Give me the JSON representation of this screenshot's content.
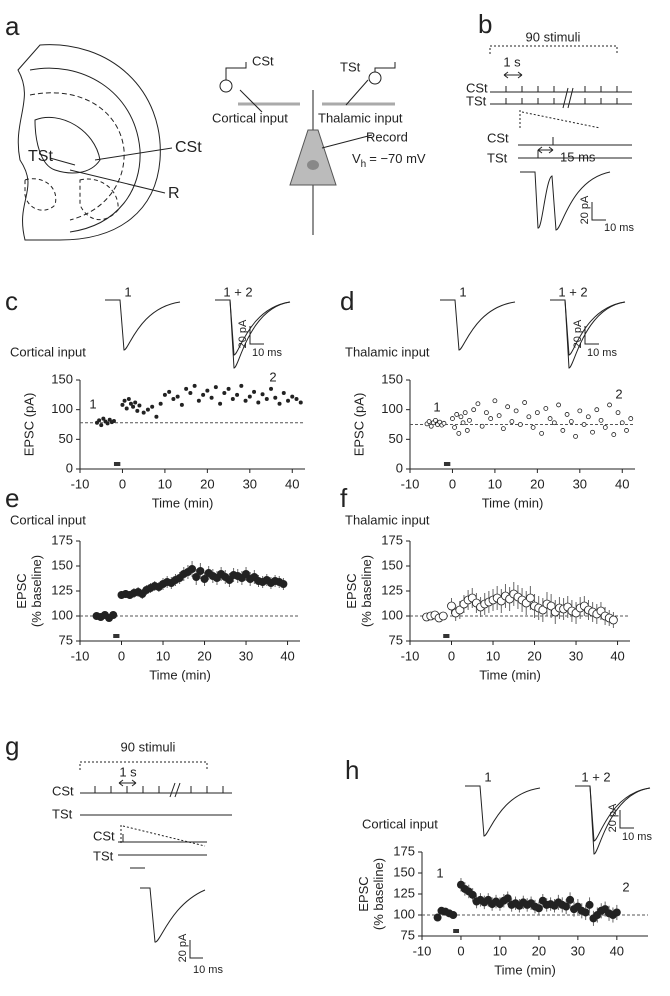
{
  "panel_a": {
    "label": "a",
    "brain_labels": [
      "TSt",
      "CSt",
      "R"
    ],
    "stimulus_labels": [
      "CSt",
      "TSt"
    ],
    "input_labels": [
      "Cortical input",
      "Thalamic input"
    ],
    "record_label": "Record",
    "holding_potential": {
      "symbol": "V",
      "subscript": "h",
      "text": "= −70 mV"
    }
  },
  "panel_b": {
    "label": "b",
    "train_label": "90 stimuli",
    "interval_label": "1 s",
    "rows": [
      "CSt",
      "TSt"
    ],
    "pair_rows": [
      "CSt",
      "TSt"
    ],
    "pair_interval_label": "15 ms",
    "scale_y": "20 pA",
    "scale_x": "10 ms"
  },
  "panel_g": {
    "label": "g",
    "train_label": "90 stimuli",
    "interval_label": "1 s",
    "rows": [
      "CSt",
      "TSt"
    ],
    "pair_rows": [
      "CSt",
      "TSt"
    ],
    "scale_y": "20 pA",
    "scale_x": "10 ms"
  },
  "chart_data": [
    {
      "type": "scatter",
      "panel": "c",
      "title": "Cortical input",
      "trace_labels": [
        "1",
        "1 + 2"
      ],
      "scale_y": "20 pA",
      "scale_x": "10 ms",
      "annotations": [
        "1",
        "2"
      ],
      "xlabel": "Time (min)",
      "ylabel": [
        "EPSC (pA)"
      ],
      "marker": "filled",
      "color": "#222222",
      "xlim": [
        -10,
        43
      ],
      "ylim": [
        0,
        150
      ],
      "xticks": [
        -10,
        0,
        10,
        20,
        30,
        40
      ],
      "yticks": [
        0,
        50,
        100,
        150
      ],
      "reference_line": 78,
      "induction_bar": [
        -2,
        -0.5
      ],
      "x": [
        -6,
        -5.5,
        -5,
        -4.5,
        -4,
        -3.5,
        -3,
        -2.5,
        -2,
        0,
        0.5,
        1,
        1.5,
        2,
        2.5,
        3,
        3.5,
        4,
        5,
        6,
        7,
        8,
        9,
        10,
        11,
        12,
        13,
        14,
        15,
        16,
        17,
        18,
        19,
        20,
        21,
        22,
        23,
        24,
        25,
        26,
        27,
        28,
        29,
        30,
        31,
        32,
        33,
        34,
        35,
        36,
        37,
        38,
        39,
        40,
        41,
        42
      ],
      "values": [
        78,
        82,
        74,
        85,
        80,
        77,
        83,
        79,
        81,
        108,
        115,
        102,
        118,
        110,
        105,
        112,
        98,
        107,
        95,
        100,
        105,
        88,
        110,
        125,
        130,
        118,
        122,
        108,
        135,
        128,
        140,
        115,
        125,
        132,
        120,
        138,
        110,
        128,
        135,
        118,
        125,
        140,
        115,
        122,
        130,
        112,
        126,
        118,
        135,
        120,
        110,
        128,
        115,
        122,
        118,
        112
      ]
    },
    {
      "type": "scatter",
      "panel": "d",
      "title": "Thalamic input",
      "trace_labels": [
        "1",
        "1 + 2"
      ],
      "scale_y": "20 pA",
      "scale_x": "10 ms",
      "annotations": [
        "1",
        "2"
      ],
      "xlabel": "Time (min)",
      "ylabel": [
        "EPSC (pA)"
      ],
      "marker": "open",
      "color": "#222222",
      "xlim": [
        -10,
        43
      ],
      "ylim": [
        0,
        150
      ],
      "xticks": [
        -10,
        0,
        10,
        20,
        30,
        40
      ],
      "yticks": [
        0,
        50,
        100,
        150
      ],
      "reference_line": 75,
      "induction_bar": [
        -2,
        -0.5
      ],
      "x": [
        -6,
        -5.5,
        -5,
        -4.5,
        -4,
        -3.5,
        -3,
        -2.5,
        -2,
        0,
        0.5,
        1,
        1.5,
        2,
        2.5,
        3,
        3.5,
        4,
        5,
        6,
        7,
        8,
        9,
        10,
        11,
        12,
        13,
        14,
        15,
        16,
        17,
        18,
        19,
        20,
        21,
        22,
        23,
        24,
        25,
        26,
        27,
        28,
        29,
        30,
        31,
        32,
        33,
        34,
        35,
        36,
        37,
        38,
        39,
        40,
        41,
        42
      ],
      "values": [
        76,
        80,
        72,
        78,
        82,
        75,
        79,
        74,
        77,
        85,
        70,
        92,
        60,
        88,
        78,
        95,
        65,
        82,
        100,
        110,
        72,
        95,
        85,
        115,
        90,
        68,
        105,
        80,
        98,
        75,
        112,
        88,
        70,
        95,
        60,
        102,
        85,
        78,
        108,
        65,
        92,
        80,
        55,
        98,
        75,
        88,
        62,
        100,
        82,
        70,
        108,
        58,
        95,
        78,
        65,
        85
      ]
    },
    {
      "type": "scatter",
      "panel": "e",
      "title": "Cortical input",
      "xlabel": "Time (min)",
      "ylabel": [
        "EPSC",
        "(% baseline)"
      ],
      "marker": "filled",
      "color": "#222222",
      "xlim": [
        -10,
        43
      ],
      "ylim": [
        75,
        175
      ],
      "xticks": [
        -10,
        0,
        10,
        20,
        30,
        40
      ],
      "yticks": [
        75,
        100,
        125,
        150,
        175
      ],
      "reference_line": 100,
      "induction_bar": [
        -2,
        -0.5
      ],
      "x": [
        -6,
        -5,
        -4,
        -3,
        -2,
        0,
        1,
        2,
        3,
        4,
        5,
        6,
        7,
        8,
        9,
        10,
        11,
        12,
        13,
        14,
        15,
        16,
        17,
        18,
        19,
        20,
        21,
        22,
        23,
        24,
        25,
        26,
        27,
        28,
        29,
        30,
        31,
        32,
        33,
        34,
        35,
        36,
        37,
        38,
        39
      ],
      "values": [
        100,
        99,
        101,
        98,
        101,
        121,
        122,
        121,
        123,
        124,
        122,
        126,
        128,
        130,
        129,
        132,
        134,
        133,
        136,
        138,
        142,
        144,
        147,
        139,
        145,
        137,
        143,
        140,
        138,
        142,
        139,
        136,
        141,
        140,
        138,
        142,
        137,
        139,
        135,
        134,
        136,
        133,
        135,
        134,
        132
      ],
      "errors": [
        3,
        3,
        3,
        3,
        3,
        4,
        4,
        4,
        5,
        5,
        5,
        5,
        5,
        5,
        5,
        6,
        6,
        6,
        6,
        6,
        7,
        7,
        8,
        8,
        8,
        7,
        7,
        7,
        7,
        7,
        7,
        7,
        7,
        7,
        7,
        7,
        7,
        7,
        6,
        6,
        6,
        6,
        6,
        6,
        6
      ]
    },
    {
      "type": "scatter",
      "panel": "f",
      "title": "Thalamic input",
      "xlabel": "Time (min)",
      "ylabel": [
        "EPSC",
        "(% baseline)"
      ],
      "marker": "open",
      "color": "#222222",
      "xlim": [
        -10,
        43
      ],
      "ylim": [
        75,
        175
      ],
      "xticks": [
        -10,
        0,
        10,
        20,
        30,
        40
      ],
      "yticks": [
        75,
        100,
        125,
        150,
        175
      ],
      "reference_line": 100,
      "induction_bar": [
        -2,
        -0.5
      ],
      "x": [
        -6,
        -5,
        -4,
        -3,
        -2,
        0,
        1,
        2,
        3,
        4,
        5,
        6,
        7,
        8,
        9,
        10,
        11,
        12,
        13,
        14,
        15,
        16,
        17,
        18,
        19,
        20,
        21,
        22,
        23,
        24,
        25,
        26,
        27,
        28,
        29,
        30,
        31,
        32,
        33,
        34,
        35,
        36,
        37,
        38,
        39
      ],
      "values": [
        99,
        100,
        101,
        98,
        100,
        110,
        103,
        106,
        112,
        116,
        118,
        113,
        109,
        112,
        114,
        116,
        118,
        115,
        120,
        117,
        122,
        119,
        116,
        113,
        118,
        110,
        108,
        106,
        112,
        110,
        104,
        108,
        107,
        109,
        105,
        103,
        108,
        110,
        106,
        104,
        102,
        105,
        100,
        98,
        96
      ],
      "errors": [
        3,
        3,
        3,
        3,
        3,
        8,
        8,
        9,
        9,
        10,
        10,
        10,
        10,
        11,
        11,
        11,
        12,
        12,
        12,
        12,
        12,
        12,
        12,
        12,
        12,
        12,
        12,
        12,
        12,
        12,
        12,
        11,
        11,
        11,
        11,
        11,
        11,
        10,
        10,
        10,
        10,
        9,
        9,
        8,
        8
      ]
    },
    {
      "type": "scatter",
      "panel": "h",
      "title": "Cortical input",
      "trace_labels": [
        "1",
        "1 + 2"
      ],
      "scale_y": "20 pA",
      "scale_x": "10 ms",
      "annotations": [
        "1",
        "2"
      ],
      "xlabel": "Time (min)",
      "ylabel": [
        "EPSC",
        "(% baseline)"
      ],
      "marker": "filled",
      "color": "#222222",
      "xlim": [
        -10,
        48
      ],
      "ylim": [
        75,
        175
      ],
      "xticks": [
        -10,
        0,
        10,
        20,
        30,
        40
      ],
      "yticks": [
        75,
        100,
        125,
        150,
        175
      ],
      "reference_line": 100,
      "induction_bar": [
        -2,
        -0.5
      ],
      "x": [
        -6,
        -5,
        -4,
        -3,
        -2,
        0,
        1,
        2,
        3,
        4,
        5,
        6,
        7,
        8,
        9,
        10,
        11,
        12,
        13,
        14,
        15,
        16,
        17,
        18,
        19,
        20,
        21,
        22,
        23,
        24,
        25,
        26,
        27,
        28,
        29,
        30,
        31,
        32,
        33,
        34,
        35,
        36,
        37,
        38,
        39,
        40
      ],
      "values": [
        97,
        105,
        104,
        102,
        100,
        136,
        131,
        128,
        124,
        116,
        118,
        115,
        118,
        113,
        116,
        113,
        117,
        120,
        112,
        114,
        111,
        115,
        112,
        114,
        110,
        108,
        117,
        112,
        113,
        111,
        115,
        112,
        110,
        118,
        107,
        110,
        105,
        103,
        112,
        96,
        100,
        105,
        107,
        102,
        100,
        103
      ],
      "errors": [
        4,
        4,
        4,
        4,
        4,
        8,
        8,
        8,
        8,
        8,
        8,
        8,
        8,
        8,
        8,
        8,
        8,
        8,
        8,
        8,
        8,
        8,
        8,
        8,
        8,
        8,
        8,
        8,
        8,
        8,
        9,
        9,
        9,
        9,
        9,
        9,
        9,
        9,
        9,
        9,
        9,
        9,
        9,
        9,
        9,
        9
      ]
    }
  ]
}
